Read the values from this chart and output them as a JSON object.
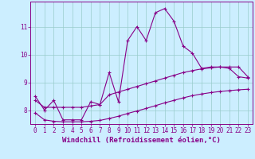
{
  "xlabel": "Windchill (Refroidissement éolien,°C)",
  "background_color": "#cceeff",
  "line_color": "#880088",
  "grid_color": "#99cccc",
  "x_values": [
    0,
    1,
    2,
    3,
    4,
    5,
    6,
    7,
    8,
    9,
    10,
    11,
    12,
    13,
    14,
    15,
    16,
    17,
    18,
    19,
    20,
    21,
    22,
    23
  ],
  "line1_y": [
    8.5,
    8.0,
    8.35,
    7.65,
    7.65,
    7.65,
    8.3,
    8.2,
    9.35,
    8.3,
    10.5,
    11.0,
    10.5,
    11.5,
    11.65,
    11.2,
    10.3,
    10.05,
    9.5,
    9.55,
    9.55,
    9.5,
    9.2,
    9.15
  ],
  "line2_y": [
    8.35,
    8.1,
    8.1,
    8.1,
    8.1,
    8.1,
    8.15,
    8.2,
    8.55,
    8.65,
    8.75,
    8.85,
    8.95,
    9.05,
    9.15,
    9.25,
    9.35,
    9.42,
    9.48,
    9.52,
    9.55,
    9.55,
    9.55,
    9.2
  ],
  "line3_y": [
    7.9,
    7.65,
    7.6,
    7.58,
    7.58,
    7.58,
    7.6,
    7.63,
    7.7,
    7.78,
    7.88,
    7.97,
    8.06,
    8.16,
    8.26,
    8.35,
    8.44,
    8.52,
    8.58,
    8.63,
    8.67,
    8.7,
    8.73,
    8.75
  ],
  "ylim": [
    7.5,
    11.9
  ],
  "yticks": [
    8,
    9,
    10,
    11
  ],
  "xticks": [
    0,
    1,
    2,
    3,
    4,
    5,
    6,
    7,
    8,
    9,
    10,
    11,
    12,
    13,
    14,
    15,
    16,
    17,
    18,
    19,
    20,
    21,
    22,
    23
  ],
  "tick_fontsize": 5.5,
  "xlabel_fontsize": 6.5
}
